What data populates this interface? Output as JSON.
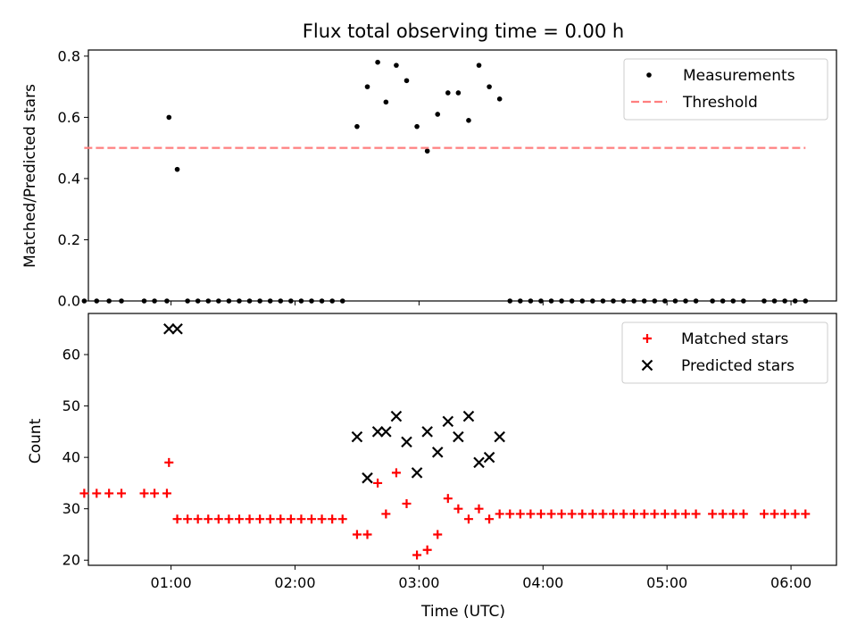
{
  "chart_data": [
    {
      "type": "scatter",
      "title": "Flux total observing time = 0.00 h",
      "ylabel": "Matched/Predicted stars",
      "ylim": [
        0,
        0.82
      ],
      "xlim": [
        "00:20",
        "06:22"
      ],
      "yticks": [
        "0.0",
        "0.2",
        "0.4",
        "0.6",
        "0.8"
      ],
      "legend": {
        "placement": "top-right"
      },
      "series": [
        {
          "name": "Measurements",
          "marker": "dot",
          "color": "#000000",
          "points": [
            [
              "00:18",
              0.0
            ],
            [
              "00:24",
              0.0
            ],
            [
              "00:30",
              0.0
            ],
            [
              "00:36",
              0.0
            ],
            [
              "00:47",
              0.0
            ],
            [
              "00:52",
              0.0
            ],
            [
              "00:58",
              0.0
            ],
            [
              "00:59",
              0.6
            ],
            [
              "01:03",
              0.43
            ],
            [
              "01:08",
              0.0
            ],
            [
              "01:13",
              0.0
            ],
            [
              "01:18",
              0.0
            ],
            [
              "01:23",
              0.0
            ],
            [
              "01:28",
              0.0
            ],
            [
              "01:33",
              0.0
            ],
            [
              "01:38",
              0.0
            ],
            [
              "01:43",
              0.0
            ],
            [
              "01:48",
              0.0
            ],
            [
              "01:53",
              0.0
            ],
            [
              "01:58",
              0.0
            ],
            [
              "02:03",
              0.0
            ],
            [
              "02:08",
              0.0
            ],
            [
              "02:13",
              0.0
            ],
            [
              "02:18",
              0.0
            ],
            [
              "02:23",
              0.0
            ],
            [
              "02:30",
              0.57
            ],
            [
              "02:35",
              0.7
            ],
            [
              "02:40",
              0.78
            ],
            [
              "02:44",
              0.65
            ],
            [
              "02:49",
              0.77
            ],
            [
              "02:54",
              0.72
            ],
            [
              "02:59",
              0.57
            ],
            [
              "03:04",
              0.49
            ],
            [
              "03:09",
              0.61
            ],
            [
              "03:14",
              0.68
            ],
            [
              "03:19",
              0.68
            ],
            [
              "03:24",
              0.59
            ],
            [
              "03:29",
              0.77
            ],
            [
              "03:34",
              0.7
            ],
            [
              "03:39",
              0.66
            ],
            [
              "03:44",
              0.0
            ],
            [
              "03:49",
              0.0
            ],
            [
              "03:54",
              0.0
            ],
            [
              "03:59",
              0.0
            ],
            [
              "04:04",
              0.0
            ],
            [
              "04:09",
              0.0
            ],
            [
              "04:14",
              0.0
            ],
            [
              "04:19",
              0.0
            ],
            [
              "04:24",
              0.0
            ],
            [
              "04:29",
              0.0
            ],
            [
              "04:34",
              0.0
            ],
            [
              "04:39",
              0.0
            ],
            [
              "04:44",
              0.0
            ],
            [
              "04:49",
              0.0
            ],
            [
              "04:54",
              0.0
            ],
            [
              "04:59",
              0.0
            ],
            [
              "05:04",
              0.0
            ],
            [
              "05:09",
              0.0
            ],
            [
              "05:14",
              0.0
            ],
            [
              "05:22",
              0.0
            ],
            [
              "05:27",
              0.0
            ],
            [
              "05:32",
              0.0
            ],
            [
              "05:37",
              0.0
            ],
            [
              "05:47",
              0.0
            ],
            [
              "05:52",
              0.0
            ],
            [
              "05:57",
              0.0
            ],
            [
              "06:02",
              0.0
            ],
            [
              "06:07",
              0.0
            ]
          ]
        },
        {
          "name": "Threshold",
          "marker": "dashed-line",
          "color": "#ff7f7f",
          "points": [
            [
              "00:18",
              0.5
            ],
            [
              "06:07",
              0.5
            ]
          ]
        }
      ]
    },
    {
      "type": "scatter",
      "xlabel": "Time (UTC)",
      "ylabel": "Count",
      "ylim": [
        19,
        68
      ],
      "xlim": [
        "00:20",
        "06:22"
      ],
      "yticks": [
        "20",
        "30",
        "40",
        "50",
        "60"
      ],
      "xticks": [
        "01:00",
        "02:00",
        "03:00",
        "04:00",
        "05:00",
        "06:00"
      ],
      "legend": {
        "placement": "top-right"
      },
      "series": [
        {
          "name": "Matched stars",
          "marker": "plus",
          "color": "#ff0000",
          "points": [
            [
              "00:18",
              33
            ],
            [
              "00:24",
              33
            ],
            [
              "00:30",
              33
            ],
            [
              "00:36",
              33
            ],
            [
              "00:47",
              33
            ],
            [
              "00:52",
              33
            ],
            [
              "00:58",
              33
            ],
            [
              "00:59",
              39
            ],
            [
              "01:03",
              28
            ],
            [
              "01:08",
              28
            ],
            [
              "01:13",
              28
            ],
            [
              "01:18",
              28
            ],
            [
              "01:23",
              28
            ],
            [
              "01:28",
              28
            ],
            [
              "01:33",
              28
            ],
            [
              "01:38",
              28
            ],
            [
              "01:43",
              28
            ],
            [
              "01:48",
              28
            ],
            [
              "01:53",
              28
            ],
            [
              "01:58",
              28
            ],
            [
              "02:03",
              28
            ],
            [
              "02:08",
              28
            ],
            [
              "02:13",
              28
            ],
            [
              "02:18",
              28
            ],
            [
              "02:23",
              28
            ],
            [
              "02:30",
              25
            ],
            [
              "02:35",
              25
            ],
            [
              "02:40",
              35
            ],
            [
              "02:44",
              29
            ],
            [
              "02:49",
              37
            ],
            [
              "02:54",
              31
            ],
            [
              "02:59",
              21
            ],
            [
              "03:04",
              22
            ],
            [
              "03:09",
              25
            ],
            [
              "03:14",
              32
            ],
            [
              "03:19",
              30
            ],
            [
              "03:24",
              28
            ],
            [
              "03:29",
              30
            ],
            [
              "03:34",
              28
            ],
            [
              "03:39",
              29
            ],
            [
              "03:44",
              29
            ],
            [
              "03:49",
              29
            ],
            [
              "03:54",
              29
            ],
            [
              "03:59",
              29
            ],
            [
              "04:04",
              29
            ],
            [
              "04:09",
              29
            ],
            [
              "04:14",
              29
            ],
            [
              "04:19",
              29
            ],
            [
              "04:24",
              29
            ],
            [
              "04:29",
              29
            ],
            [
              "04:34",
              29
            ],
            [
              "04:39",
              29
            ],
            [
              "04:44",
              29
            ],
            [
              "04:49",
              29
            ],
            [
              "04:54",
              29
            ],
            [
              "04:59",
              29
            ],
            [
              "05:04",
              29
            ],
            [
              "05:09",
              29
            ],
            [
              "05:14",
              29
            ],
            [
              "05:22",
              29
            ],
            [
              "05:27",
              29
            ],
            [
              "05:32",
              29
            ],
            [
              "05:37",
              29
            ],
            [
              "05:47",
              29
            ],
            [
              "05:52",
              29
            ],
            [
              "05:57",
              29
            ],
            [
              "06:02",
              29
            ],
            [
              "06:07",
              29
            ]
          ]
        },
        {
          "name": "Predicted stars",
          "marker": "x",
          "color": "#000000",
          "points": [
            [
              "00:59",
              65
            ],
            [
              "01:03",
              65
            ],
            [
              "02:30",
              44
            ],
            [
              "02:35",
              36
            ],
            [
              "02:40",
              45
            ],
            [
              "02:44",
              45
            ],
            [
              "02:49",
              48
            ],
            [
              "02:54",
              43
            ],
            [
              "02:59",
              37
            ],
            [
              "03:04",
              45
            ],
            [
              "03:09",
              41
            ],
            [
              "03:14",
              47
            ],
            [
              "03:19",
              44
            ],
            [
              "03:24",
              48
            ],
            [
              "03:29",
              39
            ],
            [
              "03:34",
              40
            ],
            [
              "03:39",
              44
            ]
          ]
        }
      ]
    }
  ]
}
